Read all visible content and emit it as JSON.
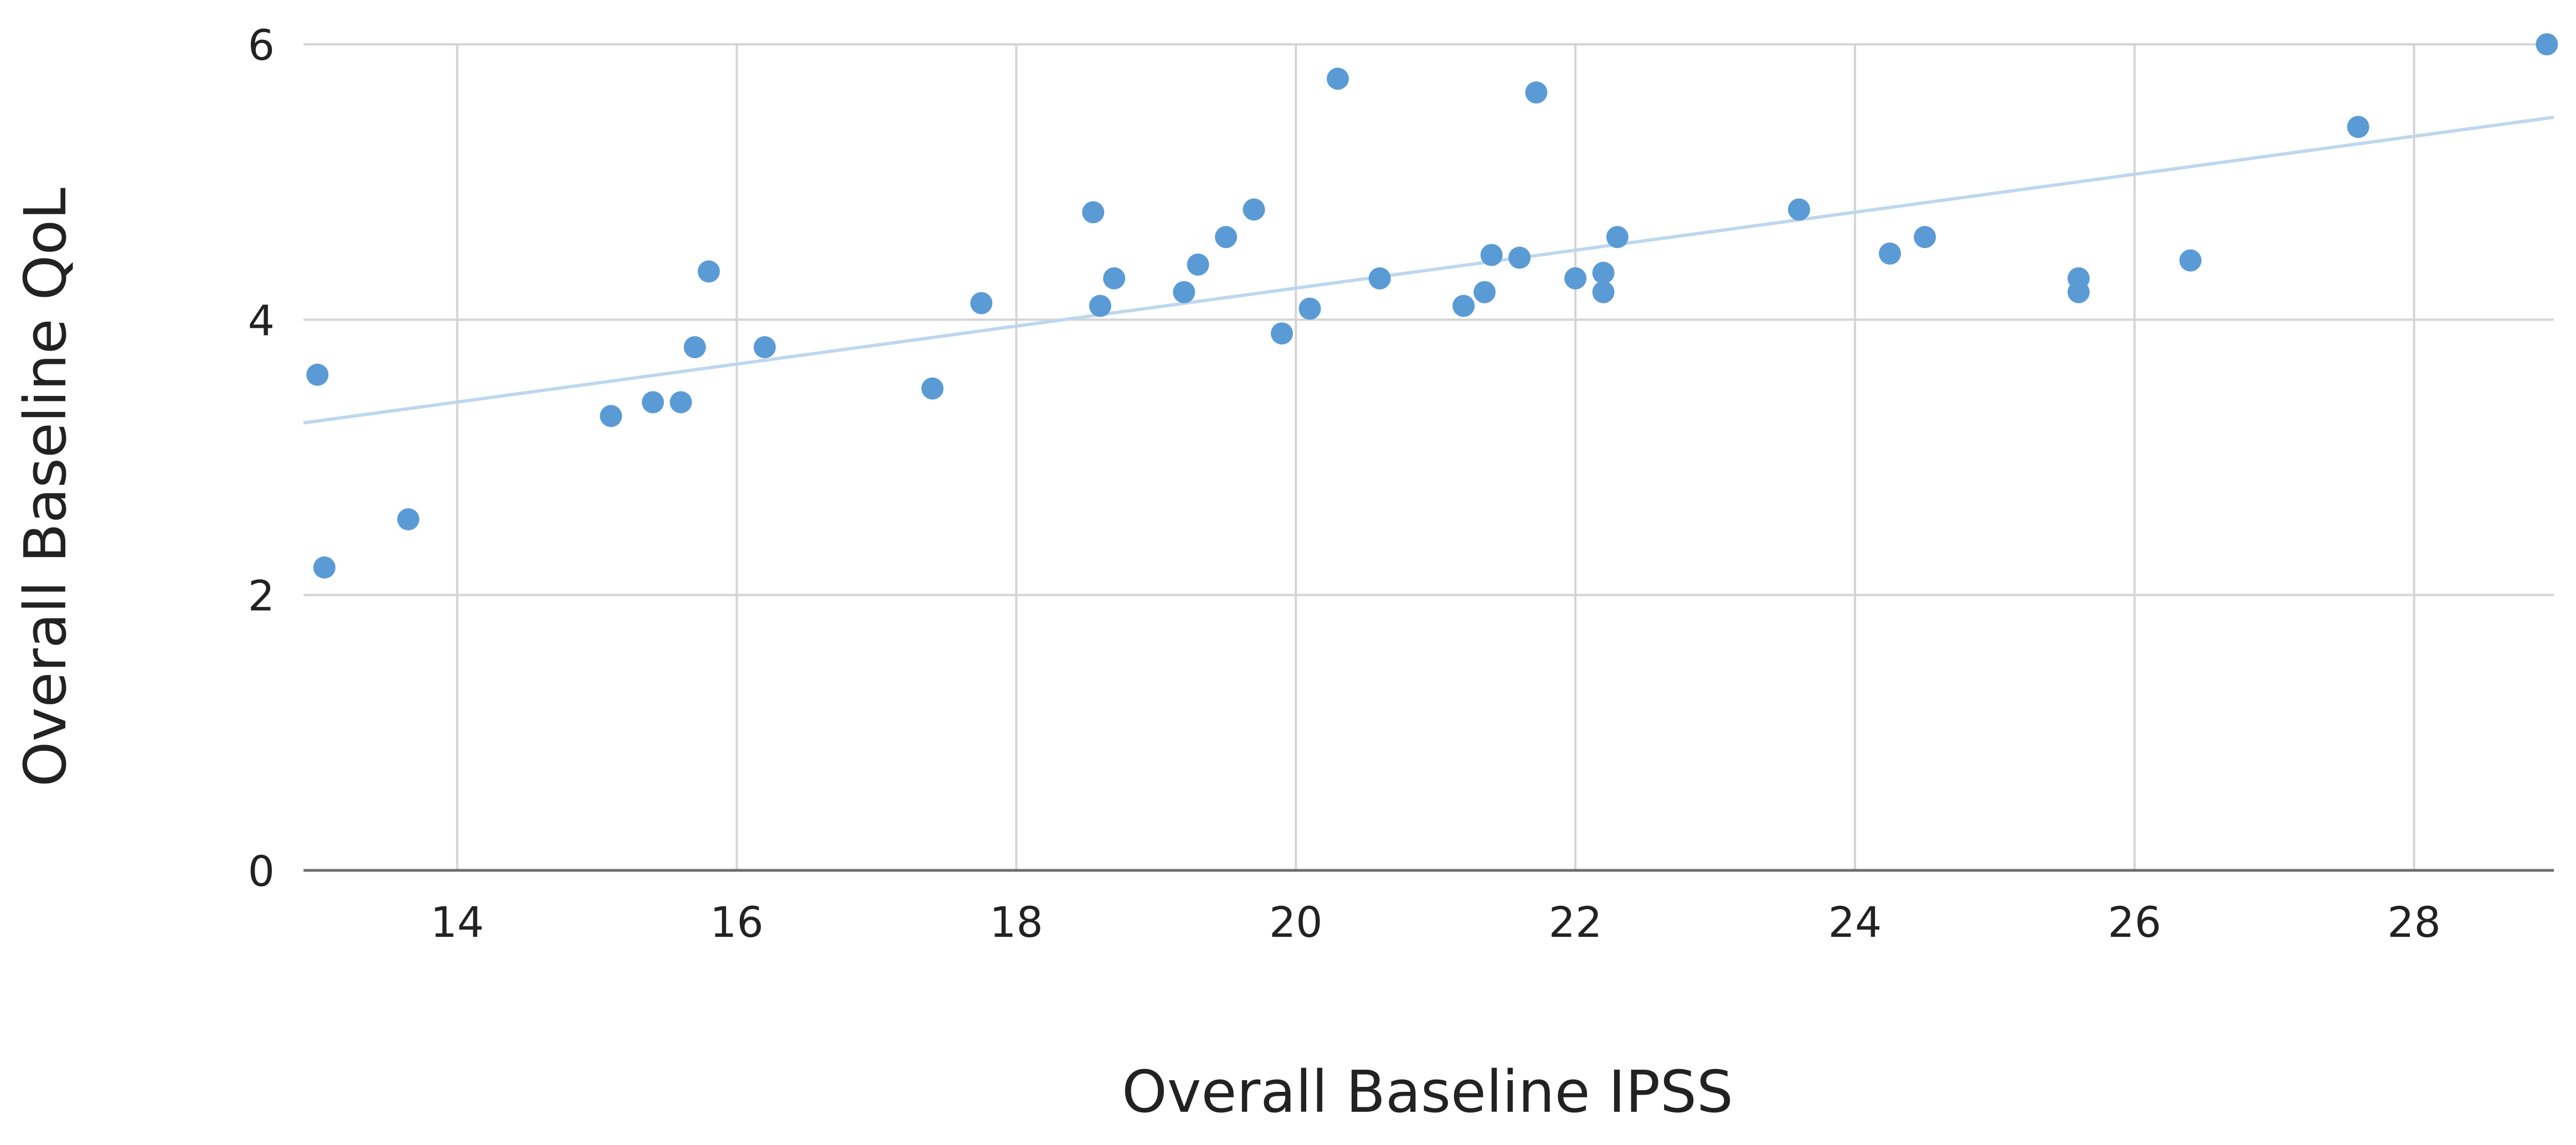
{
  "chart_data": {
    "type": "scatter",
    "xlabel": "Overall Baseline IPSS",
    "ylabel": "Overall Baseline QoL",
    "xlim": [
      12.9,
      29
    ],
    "ylim": [
      0,
      6
    ],
    "x_ticks": [
      "14",
      "16",
      "18",
      "20",
      "22",
      "24",
      "26",
      "28"
    ],
    "y_ticks": [
      "0",
      "2",
      "4",
      "6"
    ],
    "grid": true,
    "colors": {
      "points": "#5b9bd5",
      "trendline": "#bdd7ee"
    },
    "series": [
      {
        "points": [
          {
            "x": 13.0,
            "y": 3.6
          },
          {
            "x": 13.05,
            "y": 2.2
          },
          {
            "x": 13.65,
            "y": 2.55
          },
          {
            "x": 15.1,
            "y": 3.3
          },
          {
            "x": 15.4,
            "y": 3.4
          },
          {
            "x": 15.6,
            "y": 3.4
          },
          {
            "x": 15.7,
            "y": 3.8
          },
          {
            "x": 15.8,
            "y": 4.35
          },
          {
            "x": 16.2,
            "y": 3.8
          },
          {
            "x": 17.4,
            "y": 3.5
          },
          {
            "x": 17.75,
            "y": 4.12
          },
          {
            "x": 18.55,
            "y": 4.78
          },
          {
            "x": 18.6,
            "y": 4.1
          },
          {
            "x": 18.7,
            "y": 4.3
          },
          {
            "x": 19.2,
            "y": 4.2
          },
          {
            "x": 19.3,
            "y": 4.4
          },
          {
            "x": 19.5,
            "y": 4.6
          },
          {
            "x": 19.7,
            "y": 4.8
          },
          {
            "x": 19.9,
            "y": 3.9
          },
          {
            "x": 20.1,
            "y": 4.08
          },
          {
            "x": 20.3,
            "y": 5.75
          },
          {
            "x": 20.6,
            "y": 4.3
          },
          {
            "x": 21.2,
            "y": 4.1
          },
          {
            "x": 21.35,
            "y": 4.2
          },
          {
            "x": 21.4,
            "y": 4.47
          },
          {
            "x": 21.6,
            "y": 4.45
          },
          {
            "x": 21.72,
            "y": 5.65
          },
          {
            "x": 22.0,
            "y": 4.3
          },
          {
            "x": 22.2,
            "y": 4.34
          },
          {
            "x": 22.2,
            "y": 4.2
          },
          {
            "x": 22.3,
            "y": 4.6
          },
          {
            "x": 23.6,
            "y": 4.8
          },
          {
            "x": 24.25,
            "y": 4.48
          },
          {
            "x": 24.5,
            "y": 4.6
          },
          {
            "x": 25.6,
            "y": 4.3
          },
          {
            "x": 25.6,
            "y": 4.2
          },
          {
            "x": 26.4,
            "y": 4.43
          },
          {
            "x": 27.6,
            "y": 5.4
          },
          {
            "x": 28.95,
            "y": 6.0
          }
        ]
      }
    ],
    "trendline": {
      "x": [
        12.9,
        29
      ],
      "y": [
        3.25,
        5.47
      ]
    }
  }
}
